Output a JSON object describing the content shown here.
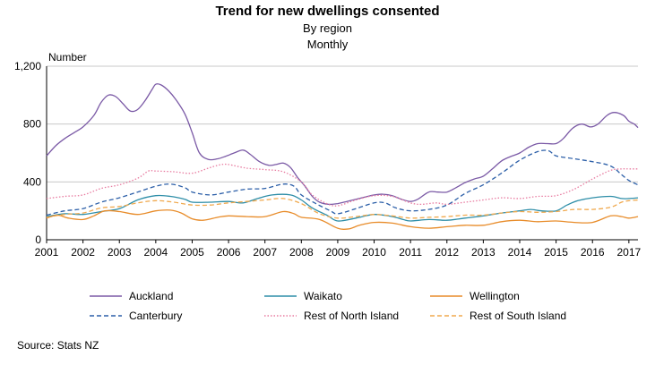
{
  "chart_data": {
    "type": "line",
    "title": "Trend for new dwellings consented",
    "subtitle": "By region",
    "frequency": "Monthly",
    "ylabel": "Number",
    "ylim": [
      0,
      1200
    ],
    "yticks": [
      0,
      400,
      800,
      1200
    ],
    "ytick_labels": [
      "0",
      "400",
      "800",
      "1,200"
    ],
    "xlim": [
      2001,
      2017.25
    ],
    "xticks": [
      "2001",
      "2002",
      "2003",
      "2004",
      "2005",
      "2006",
      "2007",
      "2008",
      "2009",
      "2010",
      "2011",
      "2012",
      "2013",
      "2014",
      "2015",
      "2016",
      "2017"
    ],
    "grid": true,
    "legend_position": "bottom",
    "series": [
      {
        "name": "Auckland",
        "color": "#7B5AA6",
        "dash": "solid",
        "points": [
          [
            2001,
            580
          ],
          [
            2001.25,
            650
          ],
          [
            2001.5,
            700
          ],
          [
            2001.75,
            740
          ],
          [
            2002,
            780
          ],
          [
            2002.3,
            860
          ],
          [
            2002.5,
            950
          ],
          [
            2002.7,
            1000
          ],
          [
            2002.9,
            990
          ],
          [
            2003.1,
            940
          ],
          [
            2003.3,
            890
          ],
          [
            2003.5,
            900
          ],
          [
            2003.7,
            960
          ],
          [
            2003.9,
            1040
          ],
          [
            2004,
            1075
          ],
          [
            2004.15,
            1070
          ],
          [
            2004.35,
            1030
          ],
          [
            2004.55,
            970
          ],
          [
            2004.8,
            870
          ],
          [
            2005,
            740
          ],
          [
            2005.2,
            600
          ],
          [
            2005.45,
            555
          ],
          [
            2005.7,
            560
          ],
          [
            2005.9,
            575
          ],
          [
            2006.15,
            600
          ],
          [
            2006.4,
            620
          ],
          [
            2006.6,
            590
          ],
          [
            2006.85,
            540
          ],
          [
            2007.1,
            515
          ],
          [
            2007.3,
            520
          ],
          [
            2007.5,
            530
          ],
          [
            2007.7,
            500
          ],
          [
            2007.9,
            430
          ],
          [
            2008.1,
            370
          ],
          [
            2008.3,
            300
          ],
          [
            2008.5,
            260
          ],
          [
            2008.75,
            245
          ],
          [
            2009,
            250
          ],
          [
            2009.25,
            265
          ],
          [
            2009.5,
            280
          ],
          [
            2009.75,
            295
          ],
          [
            2010,
            310
          ],
          [
            2010.25,
            315
          ],
          [
            2010.5,
            305
          ],
          [
            2010.75,
            280
          ],
          [
            2011,
            265
          ],
          [
            2011.2,
            280
          ],
          [
            2011.5,
            330
          ],
          [
            2011.75,
            330
          ],
          [
            2012,
            330
          ],
          [
            2012.25,
            360
          ],
          [
            2012.5,
            395
          ],
          [
            2012.75,
            420
          ],
          [
            2013,
            440
          ],
          [
            2013.25,
            490
          ],
          [
            2013.5,
            545
          ],
          [
            2013.75,
            575
          ],
          [
            2014,
            600
          ],
          [
            2014.25,
            640
          ],
          [
            2014.5,
            665
          ],
          [
            2014.75,
            665
          ],
          [
            2015,
            665
          ],
          [
            2015.2,
            700
          ],
          [
            2015.45,
            770
          ],
          [
            2015.7,
            800
          ],
          [
            2015.95,
            780
          ],
          [
            2016.15,
            800
          ],
          [
            2016.4,
            860
          ],
          [
            2016.6,
            880
          ],
          [
            2016.85,
            860
          ],
          [
            2017,
            820
          ],
          [
            2017.15,
            800
          ],
          [
            2017.25,
            775
          ]
        ]
      },
      {
        "name": "Waikato",
        "color": "#2E8EA8",
        "dash": "solid",
        "points": [
          [
            2001,
            160
          ],
          [
            2001.5,
            180
          ],
          [
            2002,
            175
          ],
          [
            2002.5,
            195
          ],
          [
            2003,
            215
          ],
          [
            2003.5,
            275
          ],
          [
            2004,
            305
          ],
          [
            2004.4,
            300
          ],
          [
            2004.8,
            280
          ],
          [
            2005,
            260
          ],
          [
            2005.5,
            260
          ],
          [
            2006,
            265
          ],
          [
            2006.4,
            255
          ],
          [
            2006.8,
            285
          ],
          [
            2007.2,
            310
          ],
          [
            2007.7,
            310
          ],
          [
            2008,
            275
          ],
          [
            2008.3,
            220
          ],
          [
            2008.7,
            170
          ],
          [
            2009,
            130
          ],
          [
            2009.5,
            150
          ],
          [
            2010,
            175
          ],
          [
            2010.5,
            160
          ],
          [
            2010.8,
            140
          ],
          [
            2011,
            130
          ],
          [
            2011.5,
            140
          ],
          [
            2012,
            135
          ],
          [
            2012.5,
            150
          ],
          [
            2013,
            165
          ],
          [
            2013.5,
            185
          ],
          [
            2014,
            200
          ],
          [
            2014.3,
            210
          ],
          [
            2014.6,
            200
          ],
          [
            2015,
            200
          ],
          [
            2015.3,
            240
          ],
          [
            2015.6,
            270
          ],
          [
            2016,
            290
          ],
          [
            2016.5,
            300
          ],
          [
            2016.8,
            285
          ],
          [
            2017,
            285
          ],
          [
            2017.25,
            290
          ]
        ]
      },
      {
        "name": "Wellington",
        "color": "#E88C2A",
        "dash": "solid",
        "points": [
          [
            2001,
            150
          ],
          [
            2001.3,
            170
          ],
          [
            2001.6,
            150
          ],
          [
            2002,
            140
          ],
          [
            2002.3,
            165
          ],
          [
            2002.6,
            200
          ],
          [
            2003,
            195
          ],
          [
            2003.5,
            175
          ],
          [
            2004,
            200
          ],
          [
            2004.4,
            205
          ],
          [
            2004.7,
            185
          ],
          [
            2005,
            145
          ],
          [
            2005.3,
            135
          ],
          [
            2005.7,
            155
          ],
          [
            2006,
            165
          ],
          [
            2006.5,
            160
          ],
          [
            2007,
            160
          ],
          [
            2007.5,
            195
          ],
          [
            2007.8,
            180
          ],
          [
            2008,
            155
          ],
          [
            2008.5,
            140
          ],
          [
            2009,
            80
          ],
          [
            2009.3,
            75
          ],
          [
            2009.6,
            100
          ],
          [
            2010,
            120
          ],
          [
            2010.5,
            115
          ],
          [
            2011,
            90
          ],
          [
            2011.5,
            80
          ],
          [
            2012,
            90
          ],
          [
            2012.5,
            100
          ],
          [
            2013,
            100
          ],
          [
            2013.5,
            125
          ],
          [
            2014,
            135
          ],
          [
            2014.5,
            125
          ],
          [
            2015,
            130
          ],
          [
            2015.5,
            120
          ],
          [
            2016,
            120
          ],
          [
            2016.5,
            165
          ],
          [
            2016.8,
            160
          ],
          [
            2017,
            150
          ],
          [
            2017.25,
            160
          ]
        ]
      },
      {
        "name": "Canterbury",
        "color": "#2C5FA8",
        "dash": "dashed",
        "points": [
          [
            2001,
            170
          ],
          [
            2001.5,
            200
          ],
          [
            2002,
            215
          ],
          [
            2002.5,
            260
          ],
          [
            2003,
            290
          ],
          [
            2003.5,
            330
          ],
          [
            2004,
            370
          ],
          [
            2004.4,
            385
          ],
          [
            2004.8,
            360
          ],
          [
            2005,
            330
          ],
          [
            2005.5,
            310
          ],
          [
            2006,
            330
          ],
          [
            2006.5,
            350
          ],
          [
            2007,
            355
          ],
          [
            2007.5,
            385
          ],
          [
            2007.8,
            370
          ],
          [
            2008,
            310
          ],
          [
            2008.4,
            250
          ],
          [
            2008.8,
            200
          ],
          [
            2009,
            180
          ],
          [
            2009.5,
            215
          ],
          [
            2010,
            255
          ],
          [
            2010.3,
            255
          ],
          [
            2010.6,
            220
          ],
          [
            2011,
            200
          ],
          [
            2011.5,
            210
          ],
          [
            2012,
            240
          ],
          [
            2012.5,
            320
          ],
          [
            2013,
            380
          ],
          [
            2013.5,
            460
          ],
          [
            2014,
            550
          ],
          [
            2014.5,
            610
          ],
          [
            2014.8,
            615
          ],
          [
            2015,
            580
          ],
          [
            2015.5,
            560
          ],
          [
            2016,
            540
          ],
          [
            2016.5,
            510
          ],
          [
            2016.8,
            450
          ],
          [
            2017,
            410
          ],
          [
            2017.25,
            380
          ]
        ]
      },
      {
        "name": "Rest of North Island",
        "color": "#E87BA0",
        "dash": "dotted",
        "points": [
          [
            2001,
            285
          ],
          [
            2001.5,
            300
          ],
          [
            2002,
            310
          ],
          [
            2002.5,
            355
          ],
          [
            2003,
            380
          ],
          [
            2003.5,
            425
          ],
          [
            2003.8,
            475
          ],
          [
            2004,
            475
          ],
          [
            2004.5,
            470
          ],
          [
            2005,
            460
          ],
          [
            2005.5,
            500
          ],
          [
            2005.8,
            520
          ],
          [
            2006,
            520
          ],
          [
            2006.5,
            495
          ],
          [
            2007,
            485
          ],
          [
            2007.5,
            470
          ],
          [
            2008,
            400
          ],
          [
            2008.3,
            310
          ],
          [
            2008.7,
            250
          ],
          [
            2009,
            235
          ],
          [
            2009.5,
            275
          ],
          [
            2010,
            305
          ],
          [
            2010.5,
            300
          ],
          [
            2011,
            255
          ],
          [
            2011.3,
            245
          ],
          [
            2011.7,
            255
          ],
          [
            2012,
            245
          ],
          [
            2012.5,
            260
          ],
          [
            2013,
            275
          ],
          [
            2013.5,
            290
          ],
          [
            2014,
            285
          ],
          [
            2014.5,
            300
          ],
          [
            2015,
            305
          ],
          [
            2015.5,
            350
          ],
          [
            2016,
            420
          ],
          [
            2016.5,
            480
          ],
          [
            2016.8,
            490
          ],
          [
            2017,
            490
          ],
          [
            2017.25,
            490
          ]
        ]
      },
      {
        "name": "Rest of South Island",
        "color": "#F0A94E",
        "dash": "dashed",
        "points": [
          [
            2001,
            155
          ],
          [
            2001.5,
            175
          ],
          [
            2002,
            185
          ],
          [
            2002.5,
            220
          ],
          [
            2003,
            230
          ],
          [
            2003.5,
            255
          ],
          [
            2004,
            270
          ],
          [
            2004.5,
            260
          ],
          [
            2005,
            240
          ],
          [
            2005.5,
            240
          ],
          [
            2006,
            255
          ],
          [
            2006.5,
            265
          ],
          [
            2007,
            275
          ],
          [
            2007.5,
            285
          ],
          [
            2008,
            250
          ],
          [
            2008.5,
            180
          ],
          [
            2009,
            150
          ],
          [
            2009.5,
            160
          ],
          [
            2010,
            175
          ],
          [
            2010.5,
            165
          ],
          [
            2011,
            150
          ],
          [
            2011.5,
            155
          ],
          [
            2012,
            160
          ],
          [
            2012.5,
            170
          ],
          [
            2013,
            170
          ],
          [
            2013.5,
            185
          ],
          [
            2014,
            195
          ],
          [
            2014.5,
            190
          ],
          [
            2015,
            195
          ],
          [
            2015.5,
            210
          ],
          [
            2016,
            210
          ],
          [
            2016.5,
            225
          ],
          [
            2016.8,
            260
          ],
          [
            2017,
            270
          ],
          [
            2017.25,
            275
          ]
        ]
      }
    ]
  },
  "source": "Source: Stats NZ"
}
